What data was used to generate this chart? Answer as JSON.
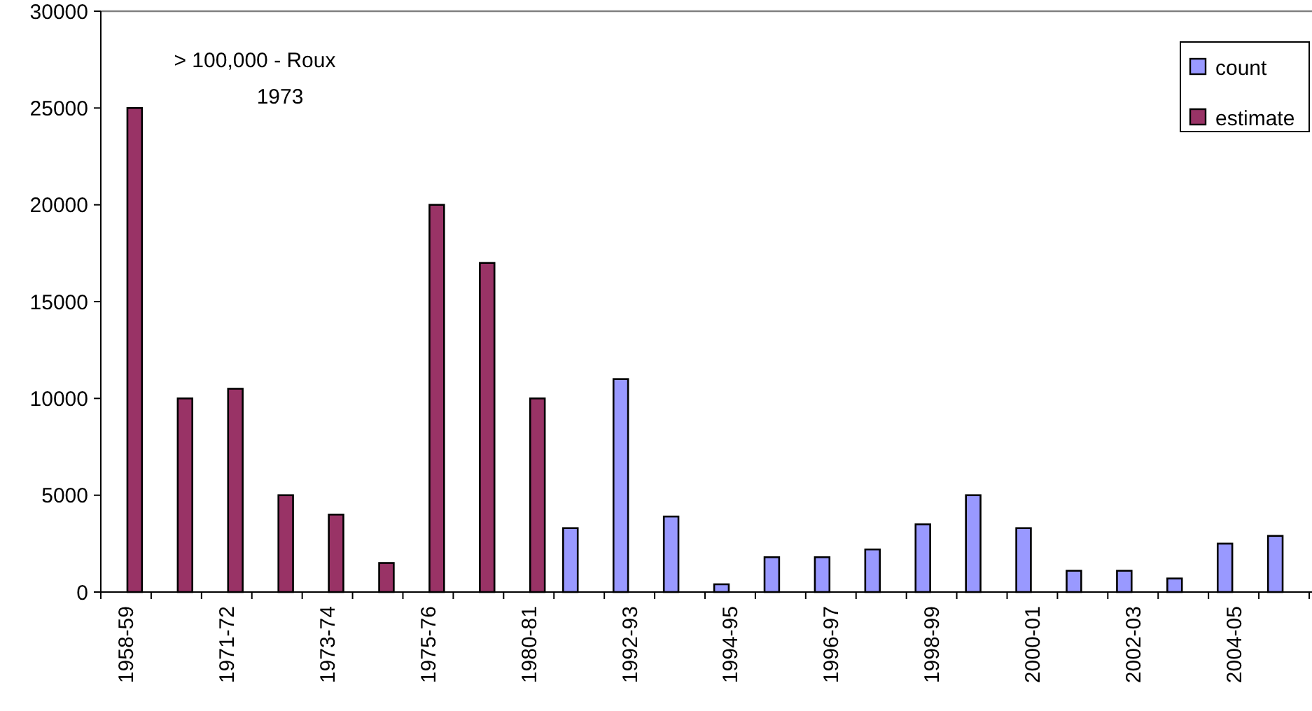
{
  "chart_data": {
    "type": "bar",
    "categories": [
      "1958-59",
      null,
      "1971-72",
      null,
      "1973-74",
      null,
      "1975-76",
      null,
      "1980-81",
      null,
      "1992-93",
      null,
      "1994-95",
      null,
      "1996-97",
      null,
      "1998-99",
      null,
      "2000-01",
      null,
      "2002-03",
      null,
      "2004-05",
      null
    ],
    "series": [
      {
        "name": "count",
        "color": "#9999ff",
        "values": [
          null,
          null,
          null,
          null,
          null,
          null,
          null,
          null,
          null,
          3300,
          11000,
          3900,
          400,
          1800,
          1800,
          2200,
          3500,
          5000,
          3300,
          1100,
          1100,
          700,
          2500,
          2900
        ]
      },
      {
        "name": "estimate",
        "color": "#993366",
        "values": [
          25000,
          10000,
          10500,
          5000,
          4000,
          1500,
          20000,
          17000,
          10000,
          null,
          null,
          null,
          null,
          null,
          null,
          null,
          null,
          null,
          null,
          null,
          null,
          null,
          null,
          null
        ]
      }
    ],
    "ylim": [
      0,
      30000
    ],
    "yticks": [
      0,
      5000,
      10000,
      15000,
      20000,
      25000,
      30000
    ],
    "annotations": [
      "> 100,000 - Roux\n1973"
    ],
    "grid": false,
    "legend": "top right"
  }
}
